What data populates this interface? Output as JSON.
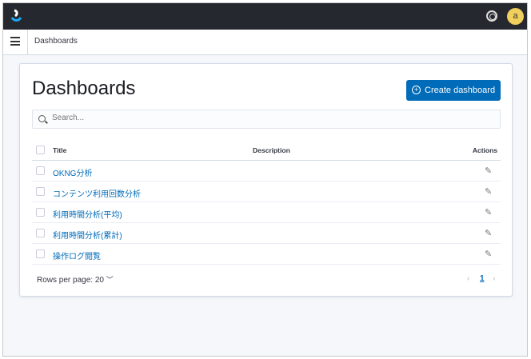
{
  "header": {
    "avatar_initial": "a",
    "breadcrumb": "Dashboards"
  },
  "main": {
    "title": "Dashboards",
    "create_label": "Create dashboard",
    "search_placeholder": "Search...",
    "columns": {
      "title": "Title",
      "description": "Description",
      "actions": "Actions"
    },
    "rows": [
      {
        "title": "OKNG分析",
        "description": ""
      },
      {
        "title": "コンテンツ利用回数分析",
        "description": ""
      },
      {
        "title": "利用時間分析(平均)",
        "description": ""
      },
      {
        "title": "利用時間分析(累計)",
        "description": ""
      },
      {
        "title": "操作ログ閲覧",
        "description": ""
      }
    ],
    "rows_per_page": "Rows per page: 20",
    "current_page": "1"
  },
  "colors": {
    "accent": "#006bb8",
    "topbar": "#25282f",
    "avatar": "#f0cf5c"
  }
}
